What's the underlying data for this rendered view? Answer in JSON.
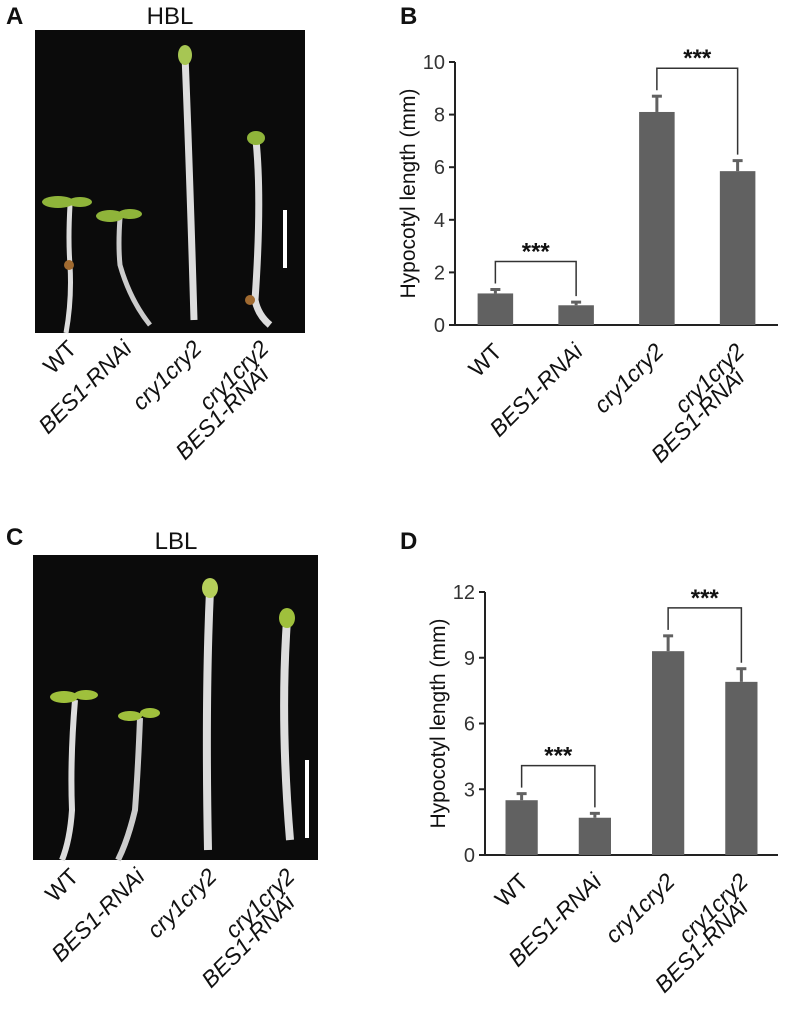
{
  "photo_panels": [
    {
      "label": "A",
      "title": "HBL",
      "genotypes": [
        [
          "WT"
        ],
        [
          "BES1-RNAi"
        ],
        [
          "cry1cry2"
        ],
        [
          "cry1cry2",
          "BES1-RNAi"
        ]
      ]
    },
    {
      "label": "C",
      "title": "LBL",
      "genotypes": [
        [
          "WT"
        ],
        [
          "BES1-RNAi"
        ],
        [
          "cry1cry2"
        ],
        [
          "cry1cry2",
          "BES1-RNAi"
        ]
      ]
    }
  ],
  "chart_data": [
    {
      "type": "bar",
      "label": "B",
      "ylabel": "Hypocotyl length (mm)",
      "categories": [
        [
          "WT"
        ],
        [
          "BES1-RNAi"
        ],
        [
          "cry1cry2"
        ],
        [
          "cry1cry2",
          "BES1-RNAi"
        ]
      ],
      "values": [
        1.2,
        0.75,
        8.1,
        5.85
      ],
      "errors": [
        0.15,
        0.12,
        0.6,
        0.4
      ],
      "color": "#616161",
      "ylim": [
        0,
        10
      ],
      "yticks": [
        0,
        2,
        4,
        6,
        8,
        10
      ],
      "annotations": [
        {
          "text": "***",
          "categories": [
            0,
            1
          ]
        },
        {
          "text": "***",
          "categories": [
            2,
            3
          ]
        }
      ]
    },
    {
      "type": "bar",
      "label": "D",
      "ylabel": "Hypocotyl length (mm)",
      "categories": [
        [
          "WT"
        ],
        [
          "BES1-RNAi"
        ],
        [
          "cry1cry2"
        ],
        [
          "cry1cry2",
          "BES1-RNAi"
        ]
      ],
      "values": [
        2.5,
        1.7,
        9.3,
        7.9
      ],
      "errors": [
        0.3,
        0.2,
        0.7,
        0.6
      ],
      "color": "#616161",
      "ylim": [
        0,
        12
      ],
      "yticks": [
        0,
        3,
        6,
        9,
        12
      ],
      "annotations": [
        {
          "text": "***",
          "categories": [
            0,
            1
          ]
        },
        {
          "text": "***",
          "categories": [
            2,
            3
          ]
        }
      ]
    }
  ]
}
